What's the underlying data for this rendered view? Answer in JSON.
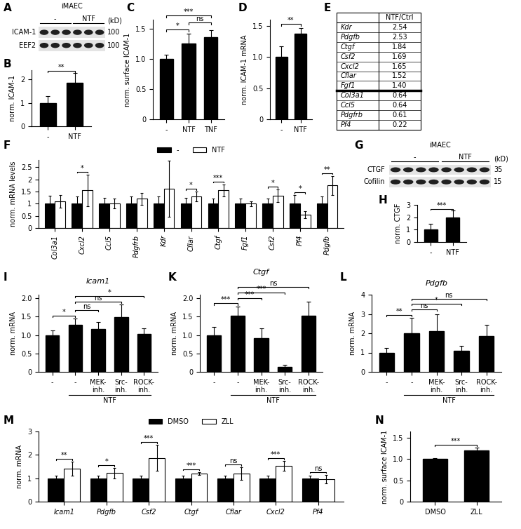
{
  "chart_data": [
    {
      "type": "blot",
      "panel": "A",
      "cell_line": "iMAEC",
      "groups": [
        {
          "label": "-",
          "lanes": 3
        },
        {
          "label": "NTF",
          "lanes": 3
        }
      ],
      "rows": [
        {
          "label": "ICAM-1",
          "marker": 100
        },
        {
          "label": "EEF2",
          "marker": 100
        }
      ],
      "unit": "(kD)"
    },
    {
      "type": "bar",
      "panel": "B",
      "y_label": "norm. ICAM-1",
      "categories": [
        "-",
        "NTF"
      ],
      "values": [
        1.0,
        1.87
      ],
      "errors": [
        0.3,
        0.4
      ],
      "color": "#000000",
      "ylim": [
        0,
        2.4
      ],
      "yticks": [
        0,
        1,
        2
      ],
      "comparisons": [
        {
          "pair": [
            0,
            1
          ],
          "label": "**"
        }
      ]
    },
    {
      "type": "bar",
      "panel": "C",
      "y_label": "norm. surface ICAM-1",
      "categories": [
        "-",
        "NTF",
        "TNF"
      ],
      "values": [
        1.0,
        1.25,
        1.36
      ],
      "errors": [
        0.07,
        0.17,
        0.12
      ],
      "color": "#000000",
      "ylim": [
        0,
        1.65
      ],
      "yticks": [
        0,
        0.5,
        {
          "value": 1,
          "label": "1.0"
        },
        1.5
      ],
      "comparisons": [
        {
          "pair": [
            0,
            1
          ],
          "label": "*"
        },
        {
          "pair": [
            1,
            2
          ],
          "label": "ns"
        },
        {
          "pair": [
            0,
            2
          ],
          "label": "***"
        }
      ]
    },
    {
      "type": "bar",
      "panel": "D",
      "y_label": "norm. ICAM-1 mRNA",
      "categories": [
        "-",
        "NTF"
      ],
      "values": [
        1.0,
        1.37
      ],
      "errors": [
        0.17,
        0.1
      ],
      "color": "#000000",
      "ylim": [
        0,
        1.6
      ],
      "yticks": [
        0,
        0.5,
        {
          "value": 1,
          "label": "1.0"
        },
        1.5
      ],
      "comparisons": [
        {
          "pair": [
            0,
            1
          ],
          "label": "**"
        }
      ]
    },
    {
      "type": "table",
      "panel": "E",
      "columns": [
        "NTF/Ctrl"
      ],
      "row_groups": [
        [
          [
            "Kdr",
            "2.54"
          ],
          [
            "Pdgfb",
            "2.53"
          ],
          [
            "Ctgf",
            "1.84"
          ],
          [
            "Csf2",
            "1.69"
          ],
          [
            "Cxcl2",
            "1.65"
          ],
          [
            "Cflar",
            "1.52"
          ],
          [
            "Fgf1",
            "1.40"
          ]
        ],
        [
          [
            "Col3a1",
            "0.64"
          ],
          [
            "Ccl5",
            "0.64"
          ],
          [
            "Pdgfrb",
            "0.61"
          ],
          [
            "Pf4",
            "0.22"
          ]
        ]
      ]
    },
    {
      "type": "grouped_bar",
      "panel": "F",
      "y_label": "norm. mRNA levels",
      "categories": [
        "Col3a1",
        "Cxcl2",
        "Ccl5",
        "Pdgfrb",
        "Kdr",
        "Cflar",
        "Ctgf",
        "Fgf1",
        "Csf2",
        "Pf4",
        "Pdgfb"
      ],
      "series": [
        {
          "name": "-",
          "color": "#000000",
          "values": [
            1,
            1,
            1,
            1,
            1,
            1,
            1,
            1,
            1,
            1,
            1
          ],
          "errors": [
            0.32,
            0.3,
            0.25,
            0.3,
            0.3,
            0.25,
            0.2,
            0.2,
            0.2,
            0.35,
            0.3
          ]
        },
        {
          "name": "NTF",
          "color": "#ffffff",
          "values": [
            1.1,
            1.55,
            1.0,
            1.2,
            1.62,
            1.3,
            1.55,
            1.0,
            1.33,
            0.55,
            1.75
          ],
          "errors": [
            0.25,
            0.65,
            0.2,
            0.25,
            1.15,
            0.2,
            0.25,
            0.1,
            0.25,
            0.15,
            0.4
          ]
        }
      ],
      "significance": [
        null,
        "*",
        null,
        null,
        null,
        "*",
        "***",
        null,
        "*",
        "*",
        "**"
      ],
      "ylim": [
        0,
        2.8
      ],
      "yticks": [
        0,
        0.5,
        1,
        1.5,
        2,
        2.5
      ],
      "legend": "top"
    },
    {
      "type": "blot",
      "panel": "G",
      "cell_line": "iMAEC",
      "groups": [
        {
          "label": "-",
          "lanes": 4
        },
        {
          "label": "NTF",
          "lanes": 4
        }
      ],
      "rows": [
        {
          "label": "CTGF",
          "marker": 35
        },
        {
          "label": "Cofilin",
          "marker": 15
        }
      ],
      "unit": "(kD)"
    },
    {
      "type": "bar",
      "panel": "H",
      "y_label": "norm. CTGF",
      "categories": [
        "-",
        "NTF"
      ],
      "values": [
        1.0,
        1.97
      ],
      "errors": [
        0.5,
        0.55
      ],
      "color": "#000000",
      "ylim": [
        0,
        3
      ],
      "yticks": [
        0,
        1,
        2,
        3
      ],
      "comparisons": [
        {
          "pair": [
            0,
            1
          ],
          "label": "***"
        }
      ]
    },
    {
      "type": "bar",
      "panel": "I",
      "title": "Icam1",
      "y_label": "norm. mRNA",
      "categories": [
        "-",
        "-",
        "MEK-\ninh.",
        "Src-\ninh.",
        "ROCK-\ninh."
      ],
      "group_label": {
        "label": "NTF",
        "span": [
          1,
          4
        ]
      },
      "values": [
        1.0,
        1.27,
        1.16,
        1.48,
        1.03
      ],
      "errors": [
        0.12,
        0.18,
        0.2,
        0.35,
        0.15
      ],
      "color": "#000000",
      "ylim": [
        0,
        2.1
      ],
      "yticks": [
        0,
        0.5,
        {
          "value": 1,
          "label": "1.0"
        },
        1.5,
        {
          "value": 2,
          "label": "2.0"
        }
      ],
      "comparisons": [
        {
          "pair": [
            0,
            1
          ],
          "label": "*"
        },
        {
          "pair": [
            1,
            2
          ],
          "label": "ns"
        },
        {
          "pair": [
            1,
            3
          ],
          "label": "ns"
        },
        {
          "pair": [
            1,
            4
          ],
          "label": "*"
        }
      ]
    },
    {
      "type": "bar",
      "panel": "K",
      "title": "Ctgf",
      "y_label": "norm. mRNA",
      "categories": [
        "-",
        "-",
        "MEK-\ninh.",
        "Src-\ninh.",
        "ROCK-\ninh."
      ],
      "group_label": {
        "label": "NTF",
        "span": [
          1,
          4
        ]
      },
      "values": [
        1.0,
        1.53,
        0.92,
        0.13,
        1.53
      ],
      "errors": [
        0.23,
        0.25,
        0.27,
        0.07,
        0.38
      ],
      "color": "#000000",
      "ylim": [
        0,
        2.1
      ],
      "yticks": [
        0,
        0.5,
        {
          "value": 1,
          "label": "1.0"
        },
        1.5,
        {
          "value": 2,
          "label": "2.0"
        }
      ],
      "comparisons": [
        {
          "pair": [
            0,
            1
          ],
          "label": "***"
        },
        {
          "pair": [
            1,
            2
          ],
          "label": "***"
        },
        {
          "pair": [
            1,
            3
          ],
          "label": "***"
        },
        {
          "pair": [
            1,
            4
          ],
          "label": "ns"
        }
      ]
    },
    {
      "type": "bar",
      "panel": "L",
      "title": "Pdgfb",
      "y_label": "norm. mRNA",
      "categories": [
        "-",
        "-",
        "MEK-\ninh.",
        "Src-\ninh.",
        "ROCK-\ninh."
      ],
      "group_label": {
        "label": "NTF",
        "span": [
          1,
          4
        ]
      },
      "values": [
        1.0,
        2.0,
        2.1,
        1.08,
        1.87
      ],
      "errors": [
        0.25,
        0.8,
        0.9,
        0.25,
        0.55
      ],
      "color": "#000000",
      "ylim": [
        0,
        4
      ],
      "yticks": [
        0,
        1,
        2,
        3,
        4
      ],
      "comparisons": [
        {
          "pair": [
            0,
            1
          ],
          "label": "**"
        },
        {
          "pair": [
            1,
            2
          ],
          "label": "ns"
        },
        {
          "pair": [
            1,
            3
          ],
          "label": "*"
        },
        {
          "pair": [
            1,
            4
          ],
          "label": "ns"
        }
      ]
    },
    {
      "type": "grouped_bar",
      "panel": "M",
      "y_label": "norm. mRNA",
      "categories": [
        "Icam1",
        "Pdgfb",
        "Csf2",
        "Ctgf",
        "Cflar",
        "Cxcl2",
        "Pf4"
      ],
      "series": [
        {
          "name": "DMSO",
          "color": "#000000",
          "values": [
            1,
            1,
            1,
            1,
            1,
            1,
            1
          ],
          "errors": [
            0.12,
            0.1,
            0.1,
            0.1,
            0.12,
            0.1,
            0.1
          ]
        },
        {
          "name": "ZLL",
          "color": "#ffffff",
          "values": [
            1.4,
            1.22,
            1.87,
            1.2,
            1.2,
            1.53,
            0.97
          ],
          "errors": [
            0.3,
            0.22,
            0.55,
            0.07,
            0.27,
            0.2,
            0.18
          ]
        }
      ],
      "significance": [
        "**",
        "*",
        "***",
        "***",
        "ns",
        "***",
        "ns"
      ],
      "ylim": [
        0,
        3
      ],
      "yticks": [
        0,
        1,
        2,
        3
      ],
      "legend": "top"
    },
    {
      "type": "bar",
      "panel": "N",
      "y_label": "norm. surface ICAM-1",
      "categories": [
        "DMSO",
        "ZLL"
      ],
      "values": [
        1.0,
        1.2
      ],
      "errors": [
        0.02,
        0.07
      ],
      "color": "#000000",
      "ylim": [
        0,
        1.65
      ],
      "yticks": [
        0,
        0.5,
        {
          "value": 1,
          "label": "1.0"
        },
        1.5
      ],
      "comparisons": [
        {
          "pair": [
            0,
            1
          ],
          "label": "***"
        }
      ]
    }
  ]
}
